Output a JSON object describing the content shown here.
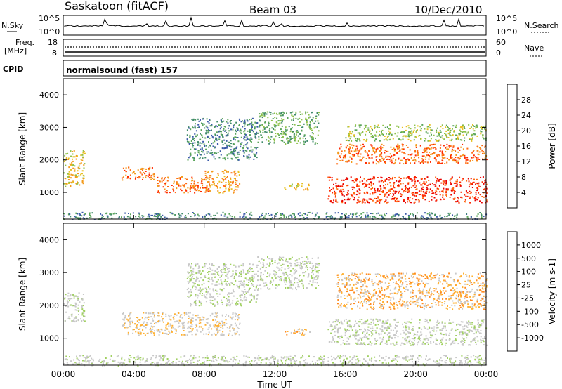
{
  "header": {
    "title": "Saskatoon (fitACF)",
    "beam": "Beam 03",
    "date": "10/Dec/2010"
  },
  "top_panels": {
    "nsky_label": "N.Sky",
    "nsky_ticks": [
      "10^5",
      "10^0"
    ],
    "nsearch_label": "N.Search",
    "nsearch_ticks": [
      "10^5",
      "10^0"
    ],
    "freq_label": "Freq.",
    "freq_unit": "[MHz]",
    "freq_ticks": [
      "18",
      "8"
    ],
    "nave_label": "Nave",
    "nave_ticks": [
      "60",
      "0"
    ],
    "cpid_label": "CPID",
    "cpid_text": "normalsound (fast) 157"
  },
  "x_axis": {
    "label": "Time UT",
    "ticks": [
      "00:00",
      "04:00",
      "08:00",
      "12:00",
      "16:00",
      "20:00",
      "00:00"
    ]
  },
  "y_axis": {
    "label": "Slant Range [km]",
    "ticks": [
      "1000",
      "2000",
      "3000",
      "4000"
    ]
  },
  "power_scale": {
    "label": "Power [dB]",
    "ticks": [
      "4",
      "8",
      "12",
      "16",
      "20",
      "24",
      "28"
    ],
    "colors": [
      "#1c1cd8",
      "#3a5aa8",
      "#3f8a6a",
      "#5aa55a",
      "#8fc24a",
      "#e8c020",
      "#f39a1a",
      "#ff6a10",
      "#ff2a00",
      "#e80000"
    ]
  },
  "velocity_scale": {
    "label": "Velocity [m s-1]",
    "ticks": [
      "1000",
      "500",
      "100",
      "25",
      "-25",
      "-100",
      "-500",
      "-1000"
    ],
    "colors": [
      "#2040c0",
      "#2f6fa0",
      "#3a9a70",
      "#60c040",
      "#a0d060",
      "#c8c8c8",
      "#c8c8c8",
      "#ffb030",
      "#ff8a20",
      "#ff5010",
      "#e82000"
    ]
  },
  "chart_data": {
    "type": "heatmap",
    "x_range": [
      "00:00",
      "24:00"
    ],
    "y_range_km": [
      180,
      4500
    ],
    "panels": [
      {
        "quantity": "Power [dB]",
        "scale_range": [
          0,
          30
        ],
        "regions": [
          {
            "t": [
              0.0,
              1.2
            ],
            "r": [
              1200,
              2300
            ],
            "value": 18
          },
          {
            "t": [
              3.3,
              5.2
            ],
            "r": [
              1400,
              1800
            ],
            "value": 22
          },
          {
            "t": [
              5.3,
              8.3
            ],
            "r": [
              1000,
              1500
            ],
            "value": 24
          },
          {
            "t": [
              8.0,
              10.0
            ],
            "r": [
              1000,
              1700
            ],
            "value": 20
          },
          {
            "t": [
              7.0,
              11.0
            ],
            "r": [
              2000,
              3300
            ],
            "value": 8
          },
          {
            "t": [
              11.0,
              14.5
            ],
            "r": [
              2500,
              3500
            ],
            "value": 10
          },
          {
            "t": [
              12.5,
              14.0
            ],
            "r": [
              1100,
              1300
            ],
            "value": 16
          },
          {
            "t": [
              15.0,
              24.0
            ],
            "r": [
              700,
              1500
            ],
            "value": 26
          },
          {
            "t": [
              15.5,
              24.0
            ],
            "r": [
              1900,
              2500
            ],
            "value": 22
          },
          {
            "t": [
              16.0,
              24.0
            ],
            "r": [
              2600,
              3100
            ],
            "value": 12
          },
          {
            "t": [
              0.0,
              24.0
            ],
            "r": [
              180,
              400
            ],
            "value": 8
          }
        ]
      },
      {
        "quantity": "Velocity [m s-1]",
        "scale_range": [
          -1000,
          1000
        ],
        "regions": [
          {
            "t": [
              0.0,
              1.2
            ],
            "r": [
              1500,
              2400
            ],
            "value": 0
          },
          {
            "t": [
              3.3,
              10.0
            ],
            "r": [
              1100,
              1800
            ],
            "value": -200
          },
          {
            "t": [
              7.0,
              11.0
            ],
            "r": [
              2000,
              3300
            ],
            "value": 0
          },
          {
            "t": [
              11.0,
              14.5
            ],
            "r": [
              2500,
              3500
            ],
            "value": 0
          },
          {
            "t": [
              12.5,
              14.0
            ],
            "r": [
              1100,
              1300
            ],
            "value": -300
          },
          {
            "t": [
              15.0,
              24.0
            ],
            "r": [
              800,
              1600
            ],
            "value": 0
          },
          {
            "t": [
              15.5,
              24.0
            ],
            "r": [
              1900,
              3000
            ],
            "value": -300
          },
          {
            "t": [
              0.0,
              24.0
            ],
            "r": [
              180,
              500
            ],
            "value": 50
          }
        ]
      }
    ]
  }
}
